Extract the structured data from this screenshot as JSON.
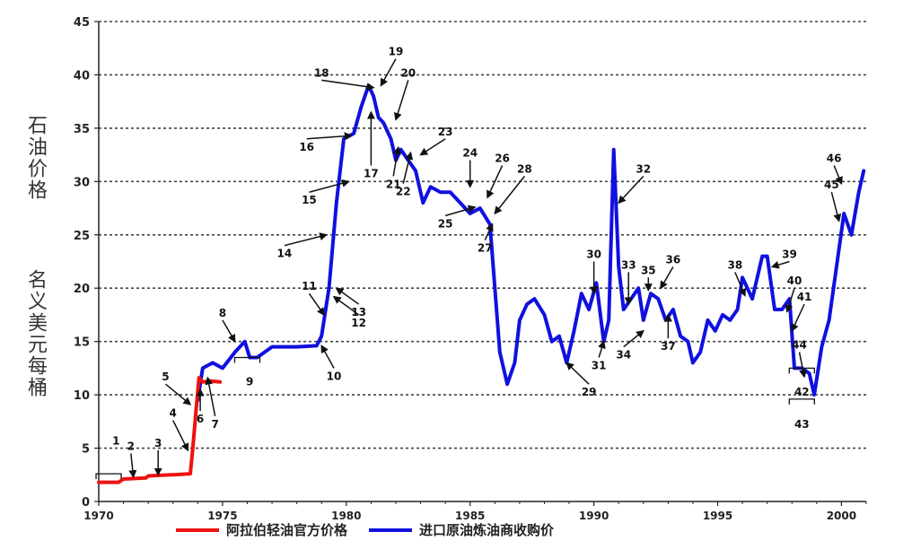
{
  "chart_data": {
    "type": "line",
    "ylabel": [
      "石油价格",
      "名义美元每桶"
    ],
    "ylim": [
      0,
      45
    ],
    "yticks": [
      0,
      5,
      10,
      15,
      20,
      25,
      30,
      35,
      40,
      45
    ],
    "xlim": [
      1970,
      2001
    ],
    "xticks": [
      1970,
      1975,
      1980,
      1985,
      1990,
      1995,
      2000
    ],
    "grid": true,
    "legend_position": "bottom",
    "colors": {
      "arabian_light": "#ee1111",
      "imported_crude": "#1010e0"
    },
    "series": [
      {
        "name": "阿拉伯轻油官方价格",
        "color": "#ee1111",
        "x": [
          1970.0,
          1970.8,
          1971.0,
          1971.9,
          1972.0,
          1972.9,
          1973.0,
          1973.7,
          1973.8,
          1973.95,
          1974.05,
          1974.2,
          1974.5,
          1974.9
        ],
        "y": [
          1.8,
          1.8,
          2.1,
          2.2,
          2.4,
          2.5,
          2.5,
          2.6,
          5.0,
          9.0,
          11.6,
          11.2,
          11.3,
          11.2
        ]
      },
      {
        "name": "进口原油炼油商收购价",
        "color": "#1010e0",
        "x": [
          1974.0,
          1974.2,
          1974.6,
          1975.0,
          1975.5,
          1975.9,
          1976.1,
          1976.4,
          1977.0,
          1977.5,
          1978.0,
          1978.8,
          1979.0,
          1979.3,
          1979.6,
          1979.9,
          1980.3,
          1980.6,
          1980.9,
          1981.1,
          1981.3,
          1981.5,
          1981.8,
          1982.0,
          1982.2,
          1982.5,
          1982.8,
          1983.1,
          1983.4,
          1983.8,
          1984.2,
          1984.6,
          1985.0,
          1985.4,
          1985.8,
          1986.0,
          1986.2,
          1986.5,
          1986.8,
          1987.0,
          1987.3,
          1987.6,
          1988.0,
          1988.3,
          1988.6,
          1988.9,
          1989.2,
          1989.5,
          1989.8,
          1990.1,
          1990.4,
          1990.6,
          1990.8,
          1991.0,
          1991.2,
          1991.5,
          1991.8,
          1992.0,
          1992.3,
          1992.6,
          1992.9,
          1993.2,
          1993.5,
          1993.8,
          1994.0,
          1994.3,
          1994.6,
          1994.9,
          1995.2,
          1995.5,
          1995.8,
          1996.0,
          1996.4,
          1996.8,
          1997.0,
          1997.3,
          1997.6,
          1997.9,
          1998.1,
          1998.4,
          1998.7,
          1998.9,
          1999.2,
          1999.5,
          1999.8,
          2000.1,
          2000.4,
          2000.7,
          2000.9
        ],
        "y": [
          9.5,
          12.5,
          13.0,
          12.5,
          14.0,
          15.0,
          13.5,
          13.5,
          14.5,
          14.5,
          14.5,
          14.6,
          15.5,
          20.0,
          28.0,
          34.0,
          34.5,
          37.0,
          39.0,
          38.0,
          36.0,
          35.5,
          34.0,
          32.0,
          33.0,
          32.0,
          31.0,
          28.0,
          29.5,
          29.0,
          29.0,
          28.0,
          27.0,
          27.5,
          26.0,
          20.0,
          14.0,
          11.0,
          13.0,
          17.0,
          18.5,
          19.0,
          17.5,
          15.0,
          15.5,
          13.0,
          16.0,
          19.5,
          18.0,
          20.5,
          15.0,
          17.0,
          33.0,
          22.0,
          18.0,
          19.0,
          20.0,
          17.0,
          19.5,
          19.0,
          17.0,
          18.0,
          15.5,
          15.0,
          13.0,
          14.0,
          17.0,
          16.0,
          17.5,
          17.0,
          18.0,
          21.0,
          19.0,
          23.0,
          23.0,
          18.0,
          18.0,
          19.0,
          12.5,
          12.5,
          12.0,
          10.0,
          14.5,
          17.0,
          22.0,
          27.0,
          25.0,
          29.0,
          31.0
        ]
      }
    ],
    "annotations": [
      "1",
      "2",
      "3",
      "4",
      "5",
      "6",
      "7",
      "8",
      "9",
      "10",
      "11",
      "12",
      "13",
      "14",
      "15",
      "16",
      "17",
      "18",
      "19",
      "20",
      "21",
      "22",
      "23",
      "24",
      "25",
      "26",
      "27",
      "28",
      "29",
      "30",
      "31",
      "32",
      "33",
      "34",
      "35",
      "36",
      "37",
      "38",
      "39",
      "40",
      "41",
      "42",
      "43",
      "44",
      "45",
      "46"
    ]
  }
}
